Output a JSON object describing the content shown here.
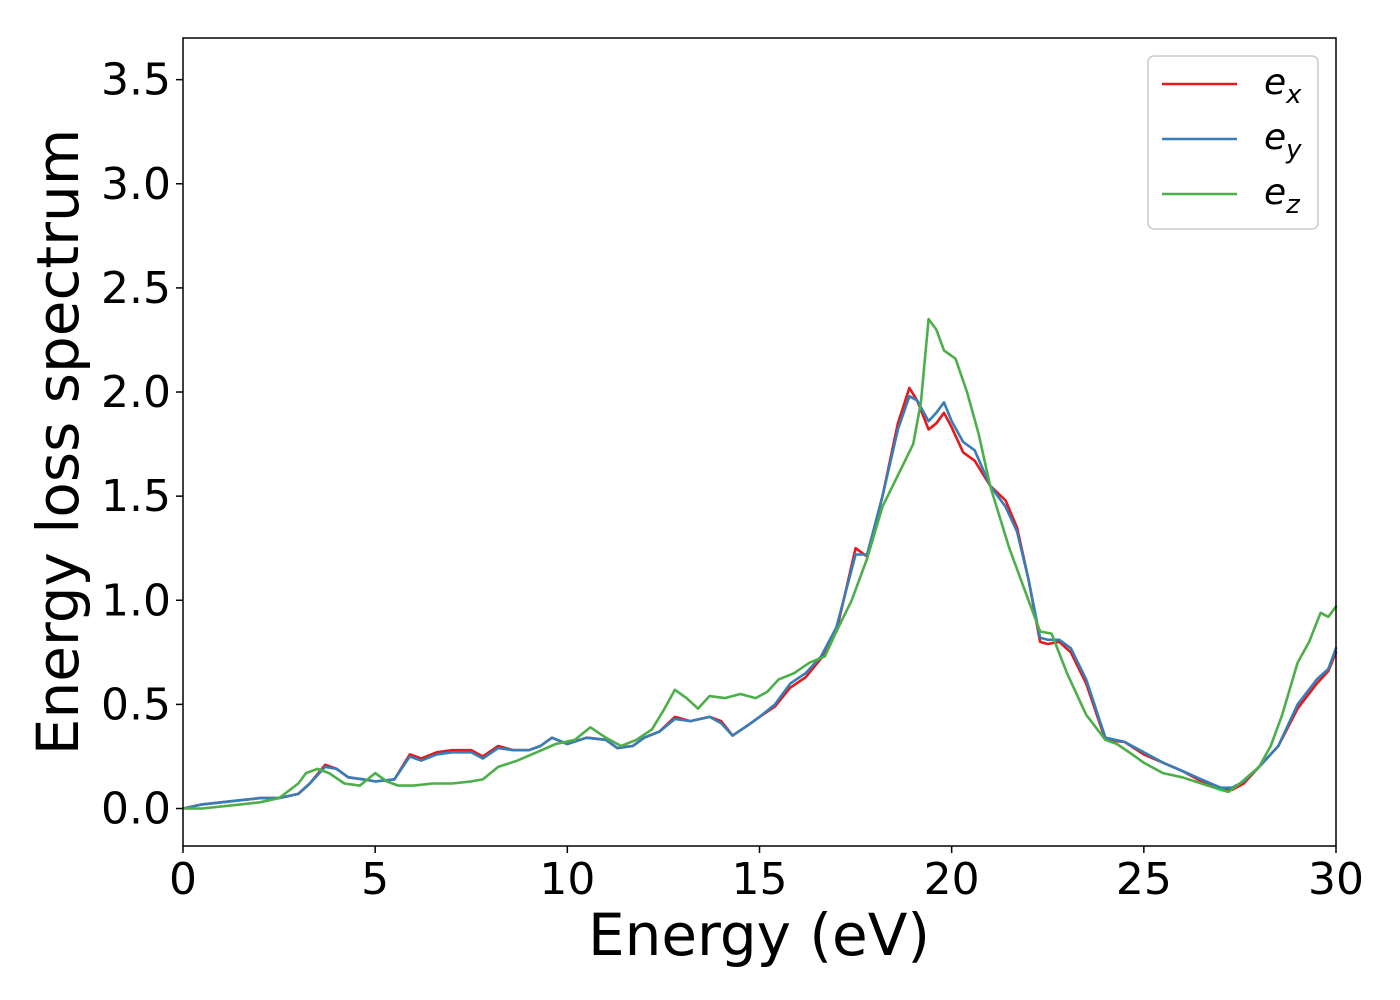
{
  "chart_data": {
    "type": "line",
    "title": "",
    "xlabel": "Energy (eV)",
    "ylabel": "Energy loss spectrum",
    "xlim": [
      0,
      30
    ],
    "ylim": [
      -0.18,
      3.7
    ],
    "xticks": [
      0,
      5,
      10,
      15,
      20,
      25,
      30
    ],
    "xtick_labels": [
      "0",
      "5",
      "10",
      "15",
      "20",
      "25",
      "30"
    ],
    "yticks": [
      0.0,
      0.5,
      1.0,
      1.5,
      2.0,
      2.5,
      3.0,
      3.5
    ],
    "ytick_labels": [
      "0.0",
      "0.5",
      "1.0",
      "1.5",
      "2.0",
      "2.5",
      "3.0",
      "3.5"
    ],
    "grid": false,
    "legend_position": "top-right",
    "series": [
      {
        "name": "e_x",
        "legend_base": "e",
        "legend_sub": "x",
        "color": "#e41a1c",
        "x": [
          0,
          0.5,
          1,
          1.5,
          2,
          2.5,
          3,
          3.3,
          3.7,
          4,
          4.3,
          4.7,
          5,
          5.5,
          5.9,
          6.2,
          6.6,
          7,
          7.5,
          7.8,
          8.2,
          8.6,
          9,
          9.3,
          9.6,
          10,
          10.5,
          11,
          11.3,
          11.7,
          12,
          12.4,
          12.8,
          13.2,
          13.7,
          14,
          14.3,
          14.7,
          15,
          15.4,
          15.8,
          16.2,
          16.6,
          17,
          17.5,
          17.8,
          18.2,
          18.6,
          18.9,
          19.1,
          19.4,
          19.6,
          19.8,
          20,
          20.3,
          20.6,
          21,
          21.4,
          21.7,
          22,
          22.3,
          22.5,
          22.8,
          23.1,
          23.5,
          24,
          24.5,
          25,
          25.5,
          26,
          26.5,
          27,
          27.3,
          27.6,
          28,
          28.5,
          29,
          29.5,
          29.8,
          30
        ],
        "y": [
          0.0,
          0.02,
          0.03,
          0.04,
          0.05,
          0.05,
          0.07,
          0.12,
          0.21,
          0.19,
          0.15,
          0.14,
          0.13,
          0.14,
          0.26,
          0.24,
          0.27,
          0.28,
          0.28,
          0.25,
          0.3,
          0.28,
          0.28,
          0.3,
          0.34,
          0.31,
          0.34,
          0.33,
          0.29,
          0.3,
          0.34,
          0.37,
          0.44,
          0.42,
          0.44,
          0.42,
          0.35,
          0.4,
          0.44,
          0.49,
          0.58,
          0.63,
          0.72,
          0.85,
          1.25,
          1.21,
          1.5,
          1.85,
          2.02,
          1.96,
          1.82,
          1.85,
          1.9,
          1.83,
          1.71,
          1.67,
          1.55,
          1.48,
          1.35,
          1.1,
          0.8,
          0.79,
          0.8,
          0.75,
          0.6,
          0.33,
          0.32,
          0.26,
          0.22,
          0.18,
          0.13,
          0.1,
          0.09,
          0.12,
          0.2,
          0.3,
          0.48,
          0.6,
          0.66,
          0.75
        ]
      },
      {
        "name": "e_y",
        "legend_base": "e",
        "legend_sub": "y",
        "color": "#377eb8",
        "x": [
          0,
          0.5,
          1,
          1.5,
          2,
          2.5,
          3,
          3.3,
          3.7,
          4,
          4.3,
          4.7,
          5,
          5.5,
          5.9,
          6.2,
          6.6,
          7,
          7.5,
          7.8,
          8.2,
          8.6,
          9,
          9.3,
          9.6,
          10,
          10.5,
          11,
          11.3,
          11.7,
          12,
          12.4,
          12.8,
          13.2,
          13.7,
          14,
          14.3,
          14.7,
          15,
          15.4,
          15.8,
          16.2,
          16.6,
          17,
          17.5,
          17.8,
          18.2,
          18.6,
          18.9,
          19.1,
          19.4,
          19.6,
          19.8,
          20,
          20.3,
          20.6,
          21,
          21.4,
          21.7,
          22,
          22.3,
          22.5,
          22.8,
          23.1,
          23.5,
          24,
          24.5,
          25,
          25.5,
          26,
          26.5,
          27,
          27.3,
          27.6,
          28,
          28.5,
          29,
          29.5,
          29.8,
          30
        ],
        "y": [
          0.0,
          0.02,
          0.03,
          0.04,
          0.05,
          0.05,
          0.07,
          0.12,
          0.2,
          0.19,
          0.15,
          0.14,
          0.13,
          0.14,
          0.25,
          0.23,
          0.26,
          0.27,
          0.27,
          0.24,
          0.29,
          0.28,
          0.28,
          0.3,
          0.34,
          0.31,
          0.34,
          0.33,
          0.29,
          0.3,
          0.34,
          0.37,
          0.43,
          0.42,
          0.44,
          0.41,
          0.35,
          0.4,
          0.44,
          0.5,
          0.6,
          0.65,
          0.73,
          0.87,
          1.22,
          1.22,
          1.5,
          1.82,
          1.98,
          1.96,
          1.86,
          1.9,
          1.95,
          1.86,
          1.76,
          1.72,
          1.55,
          1.45,
          1.33,
          1.1,
          0.82,
          0.81,
          0.81,
          0.77,
          0.62,
          0.34,
          0.32,
          0.27,
          0.22,
          0.18,
          0.14,
          0.1,
          0.1,
          0.13,
          0.2,
          0.3,
          0.5,
          0.62,
          0.67,
          0.77
        ]
      },
      {
        "name": "e_z",
        "legend_base": "e",
        "legend_sub": "z",
        "color": "#4daf4a",
        "x": [
          0,
          0.5,
          1,
          1.5,
          2,
          2.5,
          3,
          3.2,
          3.5,
          3.8,
          4.2,
          4.6,
          5,
          5.3,
          5.6,
          6,
          6.5,
          7,
          7.5,
          7.8,
          8.2,
          8.7,
          9.2,
          9.7,
          10.2,
          10.6,
          11,
          11.4,
          11.8,
          12.2,
          12.5,
          12.8,
          13.1,
          13.4,
          13.7,
          14.1,
          14.5,
          14.9,
          15.2,
          15.5,
          15.9,
          16.3,
          16.7,
          17,
          17.4,
          17.8,
          18.2,
          18.6,
          19,
          19.2,
          19.4,
          19.6,
          19.8,
          20.1,
          20.4,
          20.7,
          21,
          21.5,
          22,
          22.3,
          22.6,
          23,
          23.5,
          24,
          24.3,
          24.7,
          25,
          25.5,
          26,
          26.5,
          27,
          27.2,
          27.5,
          28,
          28.3,
          28.6,
          29,
          29.3,
          29.6,
          29.8,
          30
        ],
        "y": [
          0.0,
          0.0,
          0.01,
          0.02,
          0.03,
          0.05,
          0.12,
          0.17,
          0.19,
          0.17,
          0.12,
          0.11,
          0.17,
          0.13,
          0.11,
          0.11,
          0.12,
          0.12,
          0.13,
          0.14,
          0.2,
          0.23,
          0.27,
          0.31,
          0.33,
          0.39,
          0.34,
          0.3,
          0.33,
          0.38,
          0.47,
          0.57,
          0.53,
          0.48,
          0.54,
          0.53,
          0.55,
          0.53,
          0.56,
          0.62,
          0.65,
          0.7,
          0.73,
          0.85,
          1.0,
          1.2,
          1.45,
          1.6,
          1.75,
          1.95,
          2.35,
          2.3,
          2.2,
          2.16,
          2.0,
          1.8,
          1.55,
          1.25,
          1.0,
          0.85,
          0.84,
          0.65,
          0.45,
          0.33,
          0.31,
          0.26,
          0.22,
          0.17,
          0.15,
          0.12,
          0.09,
          0.08,
          0.12,
          0.2,
          0.3,
          0.45,
          0.7,
          0.8,
          0.94,
          0.92,
          0.97
        ]
      }
    ]
  }
}
